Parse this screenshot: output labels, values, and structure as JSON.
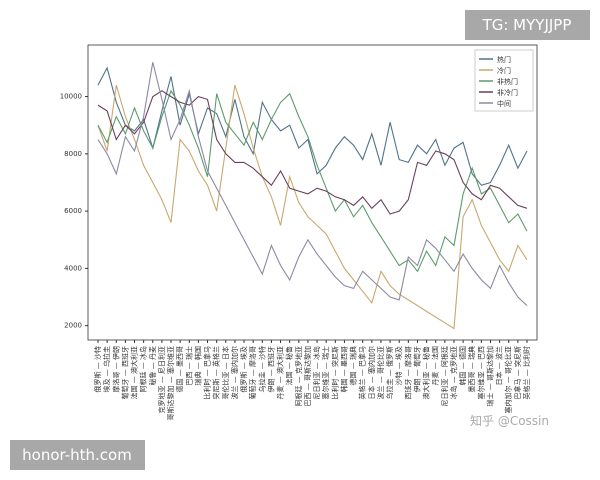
{
  "chart_data": {
    "type": "line",
    "categories": [
      "俄罗斯 — 沙特",
      "埃及 — 乌拉圭",
      "摩洛哥 — 伊朗",
      "葡萄牙 — 西班牙",
      "法国 — 澳大利亚",
      "阿根廷 — 冰岛",
      "秘鲁 — 丹麦",
      "克罗地亚 — 尼日利亚",
      "哥斯达黎加 — 塞尔维亚",
      "德国 — 墨西哥",
      "巴西 — 瑞士",
      "瑞典 — 韩国",
      "比利时 — 巴拿马",
      "突尼斯 — 英格兰",
      "哥伦比亚 — 日本",
      "波兰 — 塞内加尔",
      "俄罗斯 — 埃及",
      "葡萄牙 — 摩洛哥",
      "乌拉圭 — 沙特",
      "伊朗 — 西班牙",
      "丹麦 — 澳大利亚",
      "法国 — 秘鲁",
      "阿根廷 — 克罗地亚",
      "巴西 — 哥斯达黎加",
      "尼日利亚 — 冰岛",
      "塞尔维亚 — 瑞士",
      "比利时 — 突尼斯",
      "韩国 — 墨西哥",
      "德国 — 瑞典",
      "英格兰 — 巴拿马",
      "日本 — 塞内加尔",
      "波兰 — 哥伦比亚",
      "乌拉圭 — 俄罗斯",
      "沙特 — 埃及",
      "西班牙 — 摩洛哥",
      "伊朗 — 葡萄牙",
      "澳大利亚 — 秘鲁",
      "丹麦 — 法国",
      "尼日利亚 — 阿根廷",
      "冰岛 — 克罗地亚",
      "韩国 — 德国",
      "墨西哥 — 瑞典",
      "塞尔维亚 — 巴西",
      "瑞士 — 哥斯达黎加",
      "日本 — 波兰",
      "塞内加尔 — 哥伦比亚",
      "巴拿马 — 突尼斯",
      "英格兰 — 比利时"
    ],
    "series": [
      {
        "name": "热门",
        "color": "#4f7389",
        "values": [
          10400,
          11000,
          9800,
          9000,
          8800,
          9200,
          8200,
          9500,
          10700,
          9000,
          10100,
          8700,
          9600,
          9400,
          8600,
          9900,
          8600,
          8000,
          9800,
          9200,
          8800,
          9000,
          8200,
          8500,
          7300,
          7600,
          8200,
          8600,
          8300,
          7800,
          8700,
          7600,
          9100,
          7800,
          7700,
          8300,
          8000,
          8500,
          7600,
          8200,
          8400,
          7300,
          6900,
          7000,
          7600,
          8300,
          7500,
          8100
        ]
      },
      {
        "name": "冷门",
        "color": "#c9a86e",
        "values": [
          9000,
          8100,
          10400,
          9300,
          8500,
          7600,
          7000,
          6400,
          5600,
          8500,
          8100,
          7400,
          6900,
          6000,
          8200,
          10400,
          9400,
          8200,
          7200,
          6500,
          5500,
          7200,
          6300,
          5800,
          5500,
          5200,
          4600,
          4000,
          3600,
          3200,
          2800,
          3900,
          3400,
          3100,
          2900,
          2700,
          2500,
          2300,
          2100,
          1900,
          5800,
          6400,
          5500,
          4900,
          4300,
          3900,
          4800,
          4300
        ]
      },
      {
        "name": "非热门",
        "color": "#5d9b6c",
        "values": [
          9000,
          8400,
          9300,
          8700,
          9600,
          8800,
          8200,
          9300,
          10200,
          9700,
          9000,
          8200,
          7200,
          10100,
          9100,
          8700,
          8300,
          9100,
          8500,
          9200,
          9800,
          10100,
          9300,
          8600,
          7600,
          6800,
          6000,
          6400,
          5800,
          6200,
          5600,
          5100,
          4600,
          4100,
          4300,
          3900,
          4600,
          4100,
          5100,
          4800,
          6600,
          7500,
          6600,
          6800,
          6200,
          5600,
          5900,
          5300
        ]
      },
      {
        "name": "非冷门",
        "color": "#6b3f5c",
        "values": [
          9700,
          9500,
          8500,
          9000,
          8700,
          9100,
          10000,
          10200,
          10000,
          9800,
          9700,
          10000,
          9900,
          8500,
          8000,
          7700,
          7700,
          7500,
          7200,
          6900,
          7400,
          6800,
          6700,
          6600,
          6800,
          6700,
          6500,
          6400,
          6200,
          6500,
          6100,
          6400,
          5900,
          6000,
          6400,
          7700,
          7600,
          8100,
          8000,
          7800,
          7000,
          6600,
          6400,
          6900,
          6800,
          6500,
          6200,
          6100
        ]
      },
      {
        "name": "中间",
        "color": "#8c8aa3",
        "values": [
          8500,
          8000,
          7300,
          8600,
          8100,
          9300,
          11200,
          9900,
          8500,
          9200,
          10200,
          8600,
          7400,
          6800,
          6200,
          5600,
          5000,
          4400,
          3800,
          4800,
          4100,
          3600,
          4400,
          5000,
          4500,
          4100,
          3700,
          3400,
          3300,
          3900,
          3600,
          3300,
          3000,
          2900,
          4400,
          4100,
          5000,
          4700,
          4300,
          3900,
          4500,
          4000,
          3600,
          3300,
          4100,
          3500,
          3000,
          2700
        ]
      }
    ],
    "ylim": [
      1500,
      11800
    ],
    "yticks": [
      2000,
      4000,
      6000,
      8000,
      10000
    ],
    "grid": false,
    "legend": "upper right"
  },
  "watermarks": {
    "top": "TG: MYYJJPP",
    "bottom": "honor-hth.com",
    "credit": "知乎 @Cossin"
  }
}
